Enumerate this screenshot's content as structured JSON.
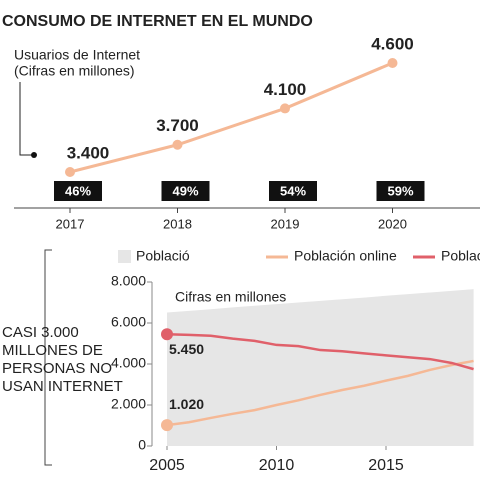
{
  "chart_data": [
    {
      "type": "line",
      "title": "CONSUMO DE INTERNET EN EL MUNDO",
      "ylabel": [
        "Usuarios de Internet",
        "(Cifras en millones)"
      ],
      "categories": [
        "2017",
        "2018",
        "2019",
        "2020"
      ],
      "values": [
        3400,
        3700,
        4100,
        4600
      ],
      "value_labels": [
        "3.400",
        "3.700",
        "4.100",
        "4.600"
      ],
      "color": "#f5b895",
      "percent_values": [
        46,
        49,
        54,
        59
      ],
      "percent_labels": [
        "46%",
        "49%",
        "54%",
        "59%"
      ]
    },
    {
      "type": "line",
      "annotation": [
        "CASI 3.000",
        "MILLONES DE",
        "PERSONAS NO",
        "USAN INTERNET"
      ],
      "note": "Cifras en millones",
      "x": [
        2005,
        2006,
        2007,
        2008,
        2009,
        2010,
        2011,
        2012,
        2013,
        2014,
        2015,
        2016,
        2017,
        2018,
        2019
      ],
      "xlim": [
        2005,
        2019.3
      ],
      "xticks": [
        2005,
        2010,
        2015
      ],
      "ylim": [
        0,
        8000
      ],
      "yticks": [
        0,
        {
          "value": 2000,
          "label": "2.000"
        },
        {
          "value": 4000,
          "label": "4.000"
        },
        {
          "value": 6000,
          "label": "6.000"
        },
        {
          "value": 8000,
          "label": "8.000"
        }
      ],
      "series": [
        {
          "name": "Població",
          "kind": "area",
          "color": "#e6e6e6",
          "values": [
            6510,
            6590,
            6670,
            6760,
            6840,
            6920,
            7000,
            7080,
            7160,
            7240,
            7330,
            7410,
            7490,
            7570,
            7650
          ]
        },
        {
          "name": "Población online",
          "kind": "line",
          "color": "#f5b895",
          "start_label": "1.020",
          "values": [
            1020,
            1160,
            1370,
            1570,
            1750,
            2000,
            2230,
            2490,
            2730,
            2940,
            3190,
            3420,
            3710,
            3950,
            4150
          ]
        },
        {
          "name": "Población Offline",
          "kind": "line",
          "color": "#e0606a",
          "start_label": "5.450",
          "values": [
            5450,
            5420,
            5380,
            5240,
            5130,
            4930,
            4870,
            4680,
            4620,
            4520,
            4420,
            4330,
            4240,
            4050,
            3750
          ]
        }
      ]
    }
  ]
}
